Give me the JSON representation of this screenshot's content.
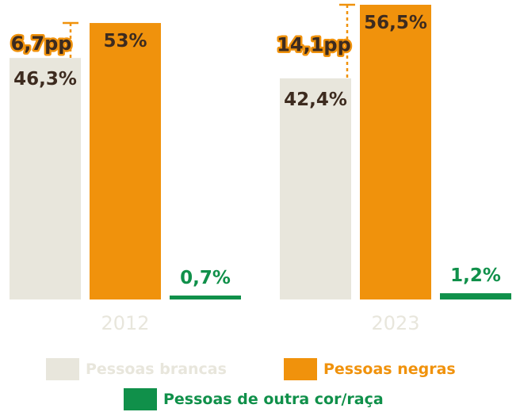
{
  "colors": {
    "white_series": "#e8e6dc",
    "black_series": "#f0920c",
    "other_series": "#10904a",
    "dark_text": "#3d2b1f",
    "year_text": "#e8e6dc"
  },
  "chart_data": {
    "type": "bar",
    "categories": [
      "2012",
      "2023"
    ],
    "ylim": [
      0,
      56.5
    ],
    "series": [
      {
        "name": "Pessoas brancas",
        "values": [
          46.3,
          42.4
        ],
        "labels": [
          "46,3%",
          "42,4%"
        ]
      },
      {
        "name": "Pessoas negras",
        "values": [
          53,
          56.5
        ],
        "labels": [
          "53%",
          "56,5%"
        ]
      },
      {
        "name": "Pessoas de outra cor/raça",
        "values": [
          0.7,
          1.2
        ],
        "labels": [
          "0,7%",
          "1,2%"
        ]
      }
    ],
    "differences": [
      "6,7pp",
      "14,1pp"
    ],
    "legend_position": "bottom",
    "grid": false
  }
}
